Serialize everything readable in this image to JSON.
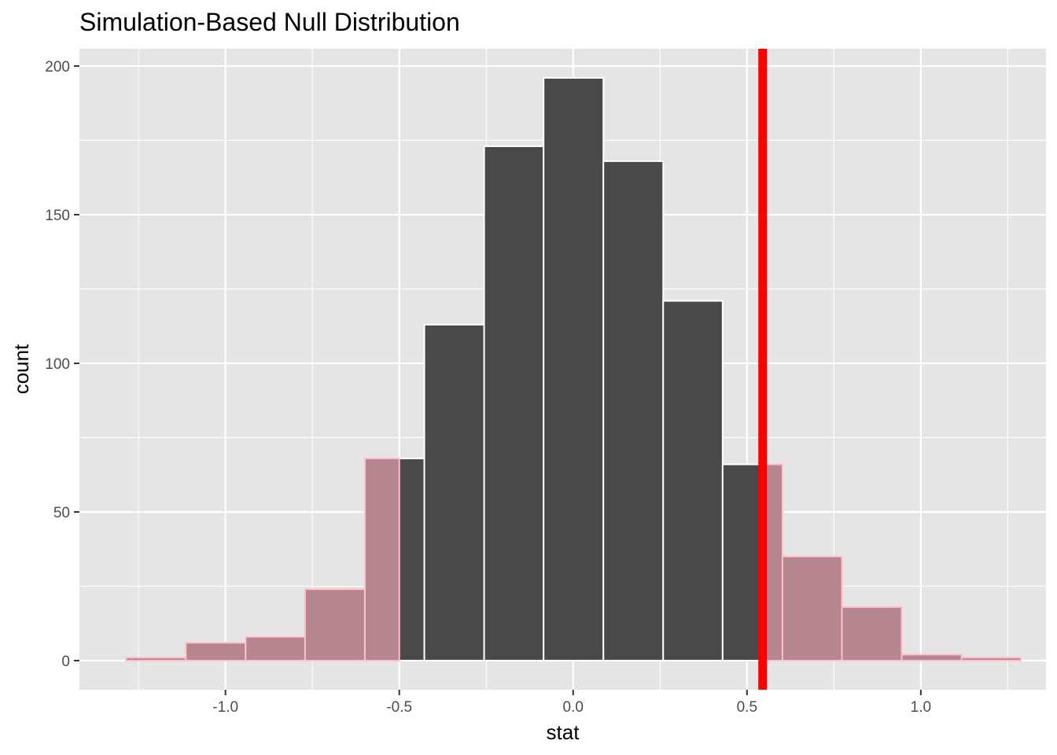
{
  "chart_data": {
    "type": "bar",
    "title": "Simulation-Based Null Distribution",
    "xlabel": "stat",
    "ylabel": "count",
    "xlim": [
      -1.42,
      1.36
    ],
    "ylim": [
      -9.8,
      205.8
    ],
    "x_ticks": [
      -1.0,
      -0.5,
      0.0,
      0.5,
      1.0
    ],
    "x_tick_labels": [
      "-1.0",
      "-0.5",
      "0.0",
      "0.5",
      "1.0"
    ],
    "y_ticks": [
      0,
      50,
      100,
      150,
      200
    ],
    "y_tick_labels": [
      "0",
      "50",
      "100",
      "150",
      "200"
    ],
    "grid": true,
    "bin_edges": [
      -1.286,
      -1.114,
      -0.942,
      -0.771,
      -0.599,
      -0.428,
      -0.256,
      -0.085,
      0.087,
      0.259,
      0.43,
      0.602,
      0.773,
      0.945,
      1.117,
      1.288
    ],
    "counts": [
      1,
      6,
      8,
      24,
      68,
      113,
      173,
      196,
      168,
      121,
      66,
      35,
      18,
      2,
      1
    ],
    "observed_stat": 0.545,
    "shade_regions": [
      [
        -1.42,
        -0.5
      ],
      [
        0.545,
        1.36
      ]
    ],
    "colors": {
      "panel_background": "#e5e5e5",
      "grid": "#ffffff",
      "bar_fill": "#494949",
      "bar_outline": "#ffffff",
      "shade_fill": "#b5868f",
      "shade_outline": "#ffc0cb",
      "observed_line": "#ff0000"
    }
  }
}
